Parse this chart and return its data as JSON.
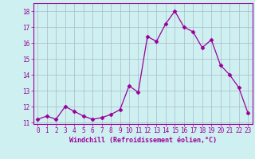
{
  "x": [
    0,
    1,
    2,
    3,
    4,
    5,
    6,
    7,
    8,
    9,
    10,
    11,
    12,
    13,
    14,
    15,
    16,
    17,
    18,
    19,
    20,
    21,
    22,
    23
  ],
  "y": [
    11.2,
    11.4,
    11.2,
    12.0,
    11.7,
    11.4,
    11.2,
    11.3,
    11.5,
    11.8,
    13.3,
    12.9,
    16.4,
    16.1,
    17.2,
    18.0,
    17.0,
    16.7,
    15.7,
    16.2,
    14.6,
    14.0,
    13.2,
    11.6
  ],
  "line_color": "#990099",
  "marker": "D",
  "marker_size": 2.5,
  "bg_color": "#cff0f0",
  "grid_color": "#aab8cc",
  "ylabel_ticks": [
    11,
    12,
    13,
    14,
    15,
    16,
    17,
    18
  ],
  "xlabel": "Windchill (Refroidissement éolien,°C)",
  "xlim": [
    -0.5,
    23.5
  ],
  "ylim": [
    10.9,
    18.5
  ],
  "tick_fontsize": 5.5,
  "xlabel_fontsize": 6.0
}
